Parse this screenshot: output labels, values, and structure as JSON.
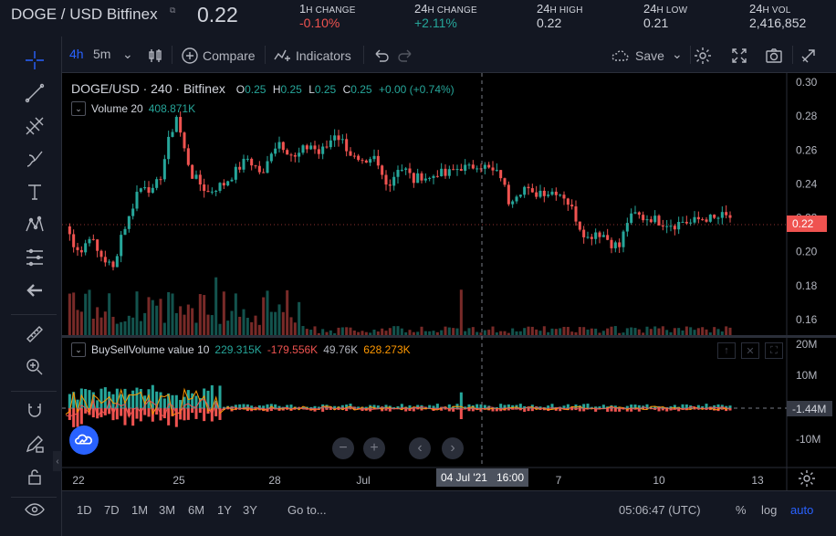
{
  "ticker": {
    "pair_title": "DOGE / USD Bitfinex",
    "last_price": "0.22",
    "stats": [
      {
        "big": "1",
        "label": "H CHANGE",
        "value": "-0.10%",
        "tone": "neg"
      },
      {
        "big": "24",
        "label": "H CHANGE",
        "value": "+2.11%",
        "tone": "pos"
      },
      {
        "big": "24",
        "label": "H HIGH",
        "value": "0.22",
        "tone": ""
      },
      {
        "big": "24",
        "label": "H LOW",
        "value": "0.21",
        "tone": ""
      },
      {
        "big": "24",
        "label": "H VOL",
        "value": "2,416,852",
        "tone": ""
      }
    ]
  },
  "toolbar": {
    "interval_active": "4h",
    "interval_alt": "5m",
    "compare_label": "Compare",
    "indicators_label": "Indicators",
    "save_label": "Save"
  },
  "left_tools": [
    "crosshair-icon",
    "trendline-icon",
    "fib-icon",
    "brush-icon",
    "text-icon",
    "pattern-icon",
    "measure-lines-icon",
    "back-arrow-icon",
    "ruler-icon",
    "zoom-in-icon",
    "magnet-icon",
    "lock-pencil-icon",
    "lock-icon",
    "eye-icon"
  ],
  "legend": {
    "symbol": "DOGE/USD",
    "interval": "240",
    "exchange": "Bitfinex",
    "o_label": "O",
    "o": "0.25",
    "h_label": "H",
    "h": "0.25",
    "l_label": "L",
    "l": "0.25",
    "c_label": "C",
    "c": "0.25",
    "change": "+0.00 (+0.74%)"
  },
  "volume_legend": {
    "name": "Volume 20",
    "value": "408.871K"
  },
  "bsv_legend": {
    "name": "BuySellVolume value 10",
    "v1": "229.315K",
    "v2": "-179.556K",
    "v3": "49.76K",
    "v4": "628.273K"
  },
  "badges": {
    "price": "0.22",
    "osc": "-1.44M",
    "date": "04 Jul '21",
    "time": "16:00"
  },
  "bottom": {
    "ranges": [
      "1D",
      "7D",
      "1M",
      "3M",
      "6M",
      "1Y",
      "3Y"
    ],
    "goto": "Go to...",
    "clock": "05:06:47 (UTC)",
    "pct": "%",
    "log": "log",
    "auto": "auto"
  },
  "chart_data": {
    "type": "candlestick",
    "price_axis": {
      "min": 0.16,
      "max": 0.3,
      "ticks": [
        "0.30",
        "0.28",
        "0.26",
        "0.24",
        "0.22",
        "0.20",
        "0.18",
        "0.16"
      ]
    },
    "osc_axis": {
      "ticks": [
        "20M",
        "10M",
        "-10M"
      ]
    },
    "x_ticks": [
      "22",
      "25",
      "28",
      "Jul",
      "7",
      "10",
      "13"
    ],
    "price_path": [
      0.215,
      0.205,
      0.2,
      0.21,
      0.2,
      0.195,
      0.19,
      0.21,
      0.22,
      0.235,
      0.24,
      0.235,
      0.245,
      0.265,
      0.28,
      0.26,
      0.245,
      0.24,
      0.235,
      0.238,
      0.24,
      0.245,
      0.25,
      0.255,
      0.25,
      0.245,
      0.26,
      0.265,
      0.26,
      0.255,
      0.26,
      0.263,
      0.258,
      0.262,
      0.27,
      0.265,
      0.258,
      0.252,
      0.25,
      0.255,
      0.245,
      0.24,
      0.25,
      0.248,
      0.242,
      0.245,
      0.243,
      0.247,
      0.245,
      0.248,
      0.25,
      0.249,
      0.252,
      0.25,
      0.247,
      0.245,
      0.23,
      0.235,
      0.238,
      0.233,
      0.236,
      0.235,
      0.236,
      0.233,
      0.225,
      0.215,
      0.208,
      0.212,
      0.21,
      0.205,
      0.203,
      0.218,
      0.222,
      0.22,
      0.22,
      0.218,
      0.217,
      0.216,
      0.218,
      0.217,
      0.219,
      0.22,
      0.219,
      0.221,
      0.22
    ]
  }
}
